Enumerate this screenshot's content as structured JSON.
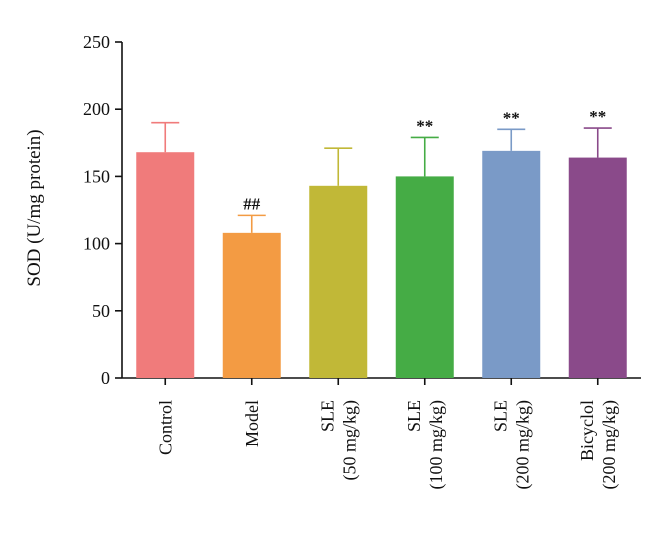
{
  "chart_data": {
    "type": "bar",
    "title": "",
    "xlabel": "",
    "ylabel": "SOD (U/mg protein)",
    "ylim": [
      0,
      250
    ],
    "yticks": [
      "0",
      "50",
      "100",
      "150",
      "200",
      "250"
    ],
    "grid": false,
    "categories": [
      {
        "lines": [
          "Control"
        ]
      },
      {
        "lines": [
          "Model"
        ]
      },
      {
        "lines": [
          "SLE",
          "(50 mg/kg)"
        ]
      },
      {
        "lines": [
          "SLE",
          "(100 mg/kg)"
        ]
      },
      {
        "lines": [
          "SLE",
          "(200 mg/kg)"
        ]
      },
      {
        "lines": [
          "Bicyclol",
          "(200 mg/kg)"
        ]
      }
    ],
    "values": [
      168,
      108,
      143,
      150,
      169,
      164
    ],
    "errors": [
      22,
      13,
      28,
      29,
      16,
      22
    ],
    "annotations": [
      "",
      "##",
      "",
      "**",
      "**",
      "**"
    ],
    "colors": [
      "#f07b7b",
      "#f39b43",
      "#c1b837",
      "#45ac45",
      "#7a9ac7",
      "#8a4a8a"
    ]
  }
}
